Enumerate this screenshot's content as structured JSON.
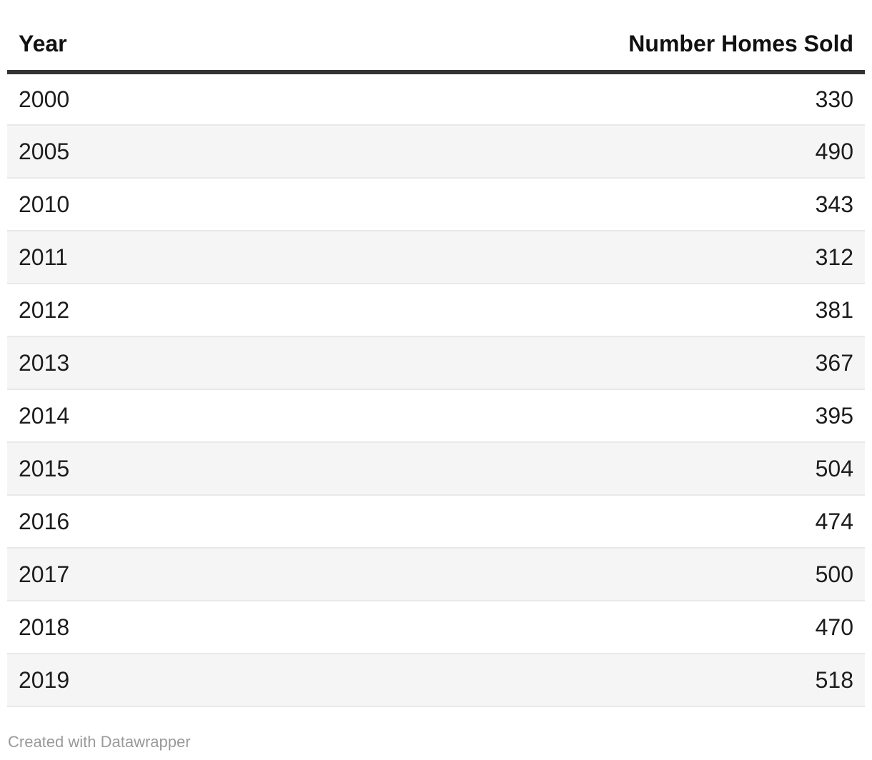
{
  "table": {
    "columns": [
      "Year",
      "Number Homes Sold"
    ]
  },
  "chart_data": {
    "type": "table",
    "title": "",
    "columns": [
      "Year",
      "Number Homes Sold"
    ],
    "categories": [
      "2000",
      "2005",
      "2010",
      "2011",
      "2012",
      "2013",
      "2014",
      "2015",
      "2016",
      "2017",
      "2018",
      "2019"
    ],
    "values": [
      330,
      490,
      343,
      312,
      381,
      367,
      395,
      504,
      474,
      500,
      470,
      518
    ],
    "rows": [
      [
        "2000",
        "330"
      ],
      [
        "2005",
        "490"
      ],
      [
        "2010",
        "343"
      ],
      [
        "2011",
        "312"
      ],
      [
        "2012",
        "381"
      ],
      [
        "2013",
        "367"
      ],
      [
        "2014",
        "395"
      ],
      [
        "2015",
        "504"
      ],
      [
        "2016",
        "474"
      ],
      [
        "2017",
        "500"
      ],
      [
        "2018",
        "470"
      ],
      [
        "2019",
        "518"
      ]
    ],
    "layout_hints": {
      "striped_rows": true,
      "stripe_color": "#f5f5f5",
      "header_rule_color": "#333333",
      "row_border_color": "#e9e9e9",
      "text_color": "#1d1d1d",
      "numbers_aligned": "right"
    }
  },
  "footer": {
    "credit": "Created with Datawrapper"
  }
}
